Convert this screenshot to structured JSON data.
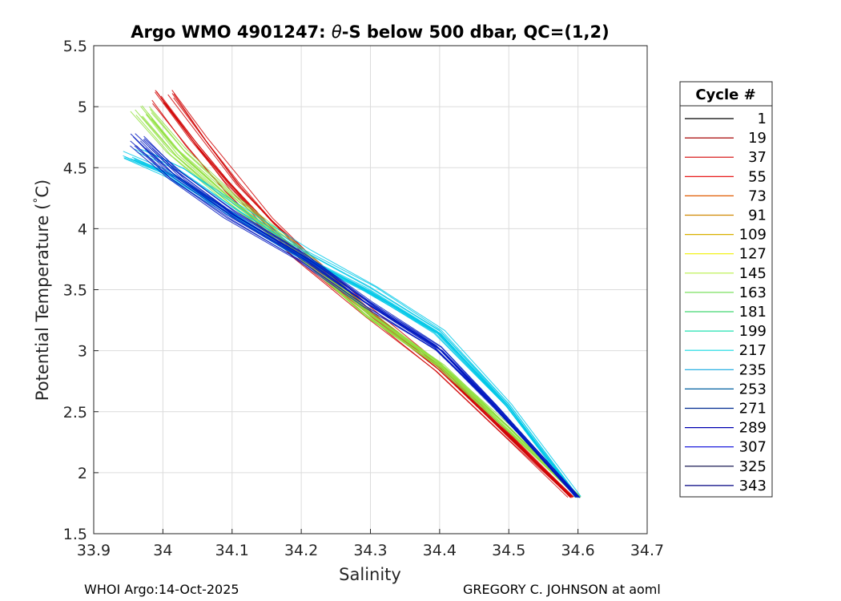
{
  "footer": {
    "left": "WHOI Argo:14-Oct-2025",
    "right": "GREGORY C. JOHNSON at aoml"
  },
  "chart_data": {
    "type": "line",
    "title_prefix": "Argo WMO 4901247: ",
    "title_theta": "θ",
    "title_suffix": "-S below 500 dbar,  QC=(1,2)",
    "xlabel": "Salinity",
    "ylabel_prefix": "Potential Temperature (",
    "ylabel_deg": "°",
    "ylabel_suffix": "C)",
    "xlim": [
      33.9,
      34.7
    ],
    "ylim": [
      1.5,
      5.5
    ],
    "xticks": [
      "33.9",
      "34",
      "34.1",
      "34.2",
      "34.3",
      "34.4",
      "34.5",
      "34.6",
      "34.7"
    ],
    "yticks": [
      "1.5",
      "2",
      "2.5",
      "3",
      "3.5",
      "4",
      "4.5",
      "5",
      "5.5"
    ],
    "grid": true,
    "colormap": "jet",
    "legend": {
      "title": "Cycle #",
      "position": "right",
      "entries": [
        {
          "label": "1",
          "color": "#000000"
        },
        {
          "label": "19",
          "color": "#a50000"
        },
        {
          "label": "37",
          "color": "#d40000"
        },
        {
          "label": "55",
          "color": "#e60000"
        },
        {
          "label": "73",
          "color": "#e05a00"
        },
        {
          "label": "91",
          "color": "#d08800"
        },
        {
          "label": "109",
          "color": "#d8b000"
        },
        {
          "label": "127",
          "color": "#f0f000"
        },
        {
          "label": "145",
          "color": "#b8f048"
        },
        {
          "label": "163",
          "color": "#7ce060"
        },
        {
          "label": "181",
          "color": "#40d870"
        },
        {
          "label": "199",
          "color": "#20e0b0"
        },
        {
          "label": "217",
          "color": "#10d8e0"
        },
        {
          "label": "235",
          "color": "#10a8e0"
        },
        {
          "label": "253",
          "color": "#0060a0"
        },
        {
          "label": "271",
          "color": "#002a90"
        },
        {
          "label": "289",
          "color": "#0000b0"
        },
        {
          "label": "307",
          "color": "#0000d8"
        },
        {
          "label": "325",
          "color": "#000040"
        },
        {
          "label": "343",
          "color": "#000080"
        }
      ]
    },
    "series_groups": [
      {
        "cycles": "early (red)",
        "color": "#d00000",
        "profile": [
          [
            34.0,
            5.08
          ],
          [
            34.05,
            4.7
          ],
          [
            34.1,
            4.35
          ],
          [
            34.15,
            4.05
          ],
          [
            34.2,
            3.78
          ],
          [
            34.3,
            3.3
          ],
          [
            34.4,
            2.85
          ],
          [
            34.5,
            2.3
          ],
          [
            34.59,
            1.8
          ]
        ]
      },
      {
        "cycles": "middle (yellow-green)",
        "color": "#90e040",
        "profile": [
          [
            33.97,
            4.95
          ],
          [
            34.02,
            4.62
          ],
          [
            34.1,
            4.22
          ],
          [
            34.2,
            3.78
          ],
          [
            34.3,
            3.28
          ],
          [
            34.4,
            2.88
          ],
          [
            34.5,
            2.36
          ],
          [
            34.6,
            1.8
          ]
        ]
      },
      {
        "cycles": "cyan",
        "color": "#00c8e8",
        "profile": [
          [
            33.96,
            4.6
          ],
          [
            34.02,
            4.45
          ],
          [
            34.1,
            4.15
          ],
          [
            34.2,
            3.8
          ],
          [
            34.3,
            3.5
          ],
          [
            34.4,
            3.15
          ],
          [
            34.5,
            2.55
          ],
          [
            34.6,
            1.8
          ]
        ]
      },
      {
        "cycles": "late (blue)",
        "color": "#0018c0",
        "profile": [
          [
            33.97,
            4.72
          ],
          [
            34.02,
            4.45
          ],
          [
            34.1,
            4.12
          ],
          [
            34.2,
            3.78
          ],
          [
            34.3,
            3.38
          ],
          [
            34.4,
            3.02
          ],
          [
            34.48,
            2.55
          ],
          [
            34.6,
            1.8
          ]
        ]
      }
    ]
  }
}
